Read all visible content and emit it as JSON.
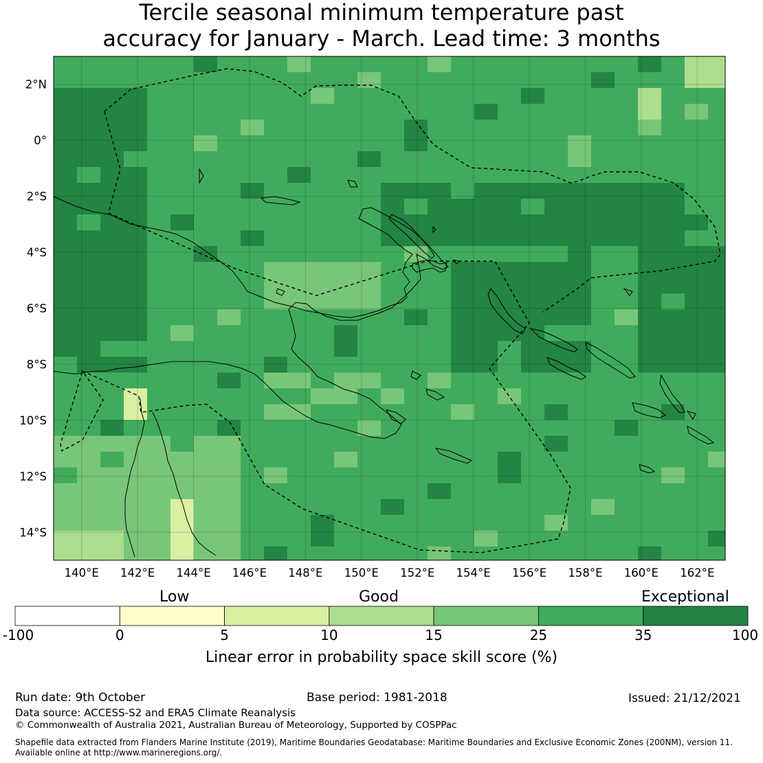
{
  "title": {
    "line1": "Tercile seasonal minimum temperature past",
    "line2": "accuracy for January - March. Lead time: 3 months"
  },
  "map": {
    "lon_range": [
      139,
      163
    ],
    "lat_range": [
      -15,
      3
    ],
    "lon_ticks": [
      "140°E",
      "142°E",
      "144°E",
      "146°E",
      "148°E",
      "150°E",
      "152°E",
      "154°E",
      "156°E",
      "158°E",
      "160°E",
      "162°E"
    ],
    "lat_ticks": [
      "2°N",
      "0°",
      "2°S",
      "4°S",
      "6°S",
      "8°S",
      "10°S",
      "12°S",
      "14°S"
    ],
    "grid_resolution_deg": 0.833,
    "default_class": 5,
    "notes": "Skill classes: 1=0-5 (pale yellow), 2=5-10, 3=10-15, 4=15-25, 5=25-35, 6=35-100 (dark green)"
  },
  "colorbar": {
    "label_low": "Low",
    "label_good": "Good",
    "label_exceptional": "Exceptional",
    "bounds": [
      "-100",
      "0",
      "5",
      "10",
      "15",
      "25",
      "35",
      "100"
    ],
    "colors": [
      "#ffffff",
      "#ffffcc",
      "#d9f0a3",
      "#addd8e",
      "#78c679",
      "#41ab5d",
      "#238443"
    ],
    "axis_label": "Linear error in probability space skill score (%)"
  },
  "footer": {
    "run_date": "Run date: 9th October",
    "base_period": "Base period: 1981-2018",
    "issued": "Issued: 21/12/2021",
    "data_source": "Data source: ACCESS-S2 and ERA5 Climate Reanalysis",
    "copyright": "© Commonwealth of Australia 2021, Australian Bureau of Meteorology, Supported by COSPPac",
    "shapefile1": "Shapefile data extracted from Flanders Marine Institute (2019), Maritime Boundaries Geodatabase: Maritime Boundaries and Exclusive Economic Zones (200NM), version 11.",
    "shapefile2": "Available online at http://www.marineregions.org/."
  }
}
